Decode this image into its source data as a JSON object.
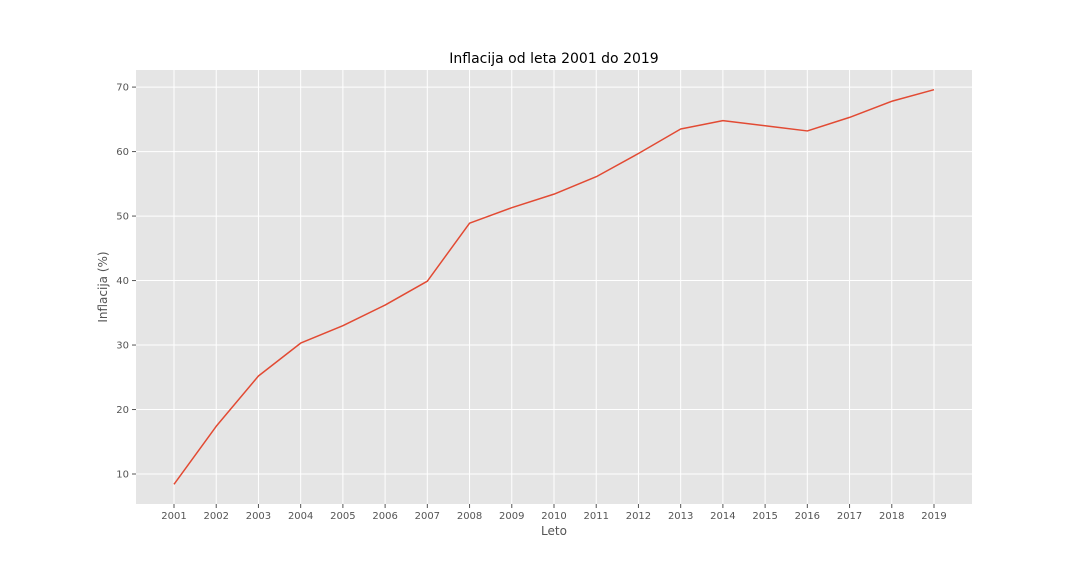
{
  "chart_data": {
    "type": "line",
    "title": "Inflacija od leta 2001 do 2019",
    "xlabel": "Leto",
    "ylabel": "Inflacija (%)",
    "x": [
      "2001",
      "2002",
      "2003",
      "2004",
      "2005",
      "2006",
      "2007",
      "2008",
      "2009",
      "2010",
      "2011",
      "2012",
      "2013",
      "2014",
      "2015",
      "2016",
      "2017",
      "2018",
      "2019"
    ],
    "series": [
      {
        "values": [
          8.4,
          17.4,
          25.2,
          30.3,
          33.0,
          36.2,
          39.9,
          48.9,
          51.3,
          53.4,
          56.1,
          59.7,
          63.5,
          64.8,
          64.0,
          63.2,
          65.3,
          67.8,
          69.6
        ]
      }
    ],
    "yticks": [
      10,
      20,
      30,
      40,
      50,
      60,
      70
    ],
    "ylim": [
      5.35,
      72.65
    ],
    "grid": true,
    "colors": {
      "line": "#e24a33",
      "plot_background": "#e5e5e5",
      "grid": "#ffffff"
    }
  }
}
